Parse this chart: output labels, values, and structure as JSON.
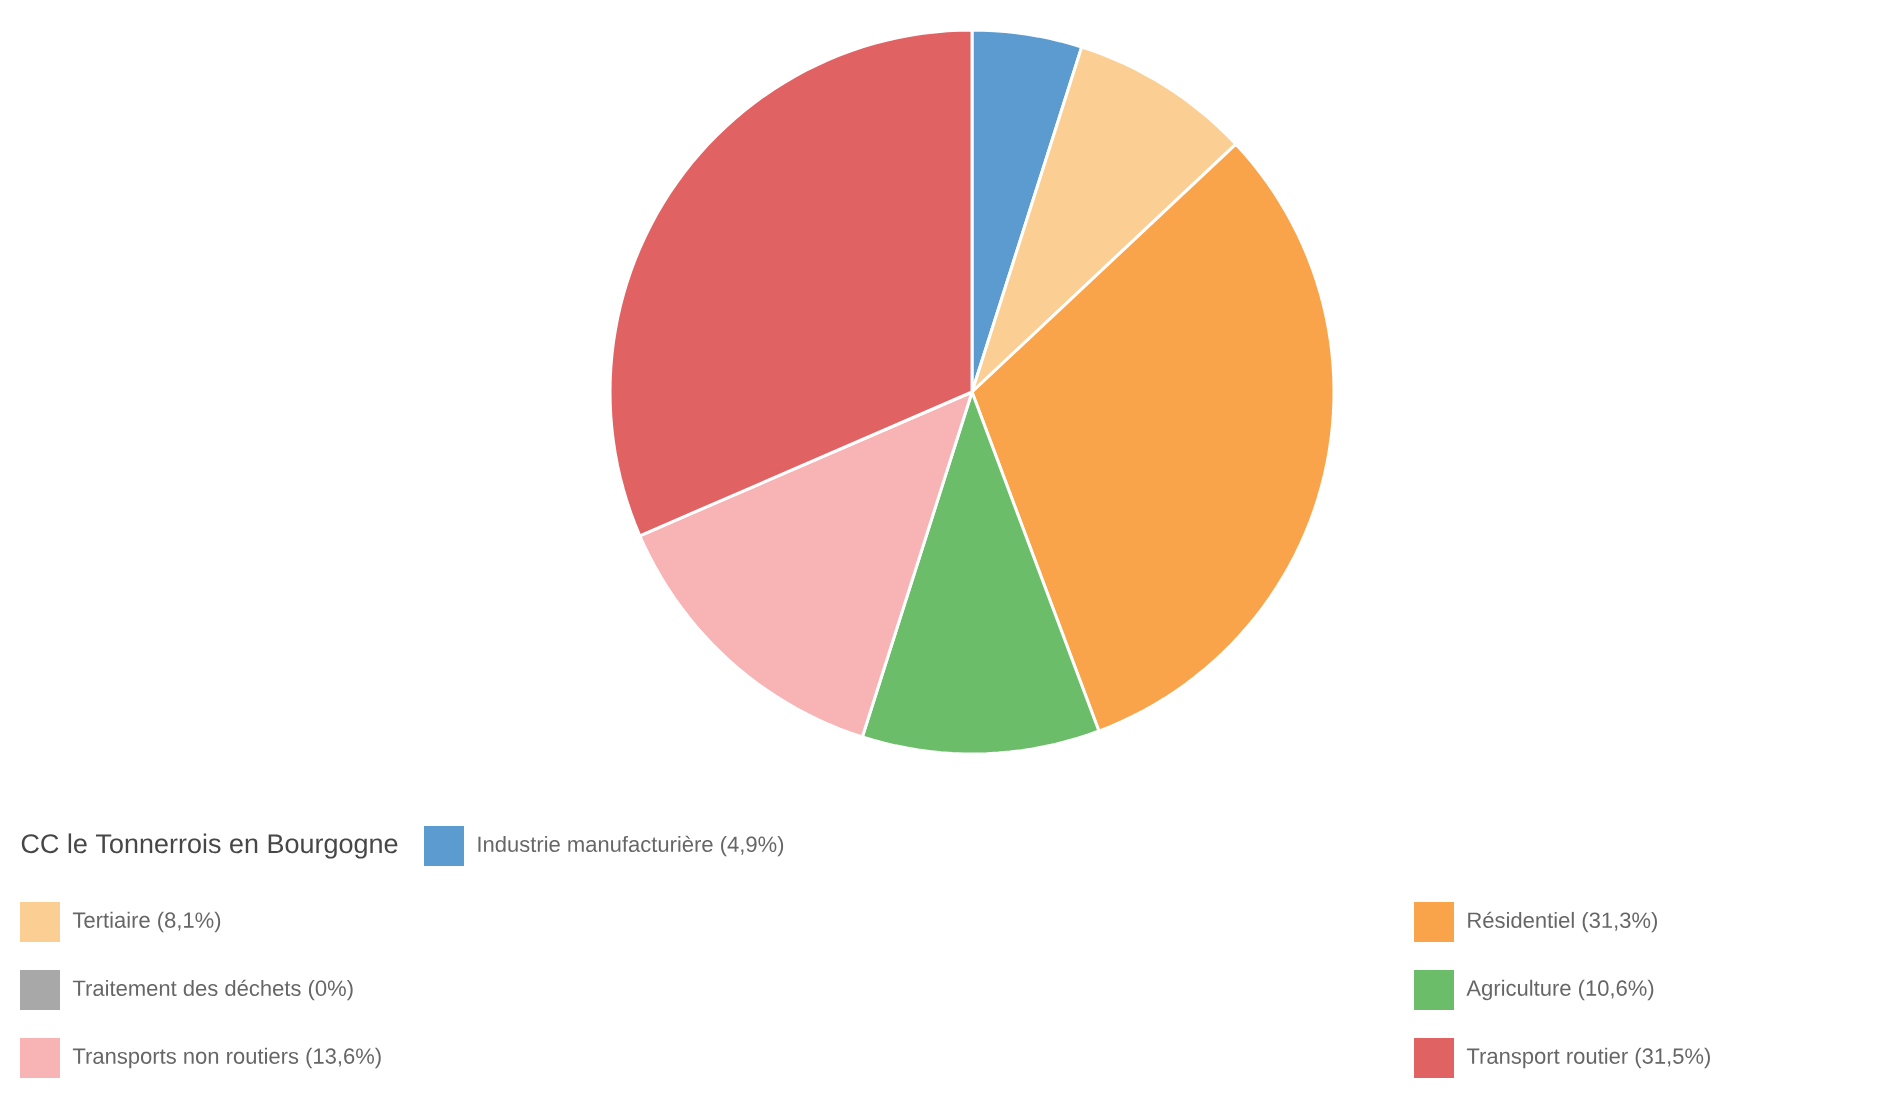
{
  "chart_data": {
    "type": "pie",
    "legend_title": "CC le Tonnerrois en Bourgogne",
    "legend": "bottom",
    "categories": [
      "Industrie manufacturière (4,9%)",
      "Tertiaire (8,1%)",
      "Résidentiel (31,3%)",
      "Traitement des déchets (0%)",
      "Agriculture (10,6%)",
      "Transports non routiers (13,6%)",
      "Transport routier (31,5%)"
    ],
    "values": [
      4.9,
      8.1,
      31.3,
      0,
      10.6,
      13.6,
      31.5
    ],
    "colors": [
      "#5b9bd0",
      "#fbcf93",
      "#f9a44b",
      "#a8a8a8",
      "#6cbd6a",
      "#f8b3b4",
      "#e06263"
    ]
  }
}
